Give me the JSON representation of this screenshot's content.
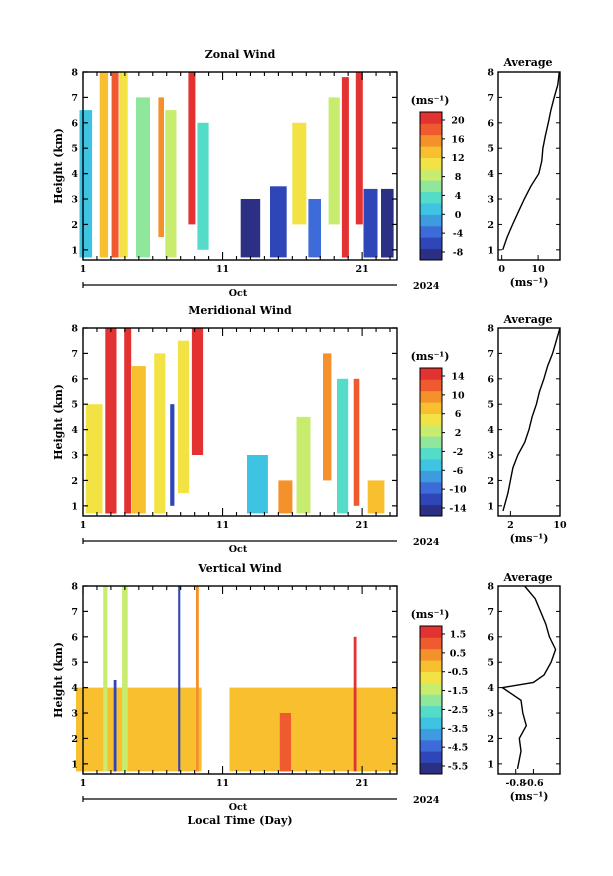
{
  "time_axis": {
    "ticks": [
      "1",
      "11",
      "21"
    ],
    "month": "Oct",
    "year": "2024",
    "xlabel": "Local Time (Day)"
  },
  "height_axis": {
    "label": "Height (km)",
    "ticks": [
      "1",
      "2",
      "3",
      "4",
      "5",
      "6",
      "7",
      "8"
    ]
  },
  "unit_label": "(ms⁻¹)",
  "average_title": "Average",
  "chart_data": [
    {
      "type": "heatmap",
      "title": "Zonal Wind",
      "ylabel": "Height (km)",
      "ylim": [
        0.6,
        8
      ],
      "xlim": [
        1,
        23.5
      ],
      "colorbar": {
        "ticks": [
          "20",
          "16",
          "12",
          "8",
          "4",
          "0",
          "-4",
          "-8"
        ],
        "range": [
          -10,
          22
        ]
      },
      "colormap": [
        "#2c3085",
        "#2f46b8",
        "#3d6cd8",
        "#3f9be0",
        "#3ec4e2",
        "#54dcc8",
        "#8ee79a",
        "#c8ec6e",
        "#f3e244",
        "#f8bf2e",
        "#f5912b",
        "#ef5a2e",
        "#e23232"
      ],
      "fields": [
        {
          "day": 1.2,
          "w": 0.9,
          "from": 0.7,
          "to": 6.5,
          "v": 0
        },
        {
          "day": 2.5,
          "w": 0.6,
          "from": 0.7,
          "to": 8,
          "v": 14
        },
        {
          "day": 3.3,
          "w": 0.5,
          "from": 0.7,
          "to": 8,
          "v": 18
        },
        {
          "day": 3.9,
          "w": 0.6,
          "from": 0.7,
          "to": 8,
          "v": 12
        },
        {
          "day": 5.3,
          "w": 1.0,
          "from": 0.7,
          "to": 7,
          "v": 6
        },
        {
          "day": 6.6,
          "w": 0.4,
          "from": 1.5,
          "to": 7,
          "v": 16
        },
        {
          "day": 7.3,
          "w": 0.8,
          "from": 0.7,
          "to": 6.5,
          "v": 8
        },
        {
          "day": 8.8,
          "w": 0.5,
          "from": 2,
          "to": 8,
          "v": 20
        },
        {
          "day": 9.6,
          "w": 0.8,
          "from": 1,
          "to": 6,
          "v": 4
        },
        {
          "day": 13,
          "w": 1.4,
          "from": 0.7,
          "to": 3,
          "v": -8
        },
        {
          "day": 15,
          "w": 1.2,
          "from": 0.7,
          "to": 3.5,
          "v": -6
        },
        {
          "day": 16.5,
          "w": 1.0,
          "from": 2,
          "to": 6,
          "v": 10
        },
        {
          "day": 17.6,
          "w": 0.9,
          "from": 0.7,
          "to": 3,
          "v": -4
        },
        {
          "day": 19,
          "w": 0.8,
          "from": 2,
          "to": 7,
          "v": 8
        },
        {
          "day": 19.8,
          "w": 0.5,
          "from": 0.7,
          "to": 7.8,
          "v": 20
        },
        {
          "day": 20.8,
          "w": 0.5,
          "from": 2,
          "to": 8,
          "v": 22
        },
        {
          "day": 21.6,
          "w": 1.0,
          "from": 0.7,
          "to": 3.4,
          "v": -6
        },
        {
          "day": 22.8,
          "w": 0.9,
          "from": 0.7,
          "to": 3.4,
          "v": -8
        }
      ],
      "average": {
        "xlim": [
          -1,
          16
        ],
        "xticks": [
          0,
          10
        ],
        "xlabel": "(ms⁻¹)",
        "profile": [
          [
            1,
            0.3
          ],
          [
            1.5,
            1.5
          ],
          [
            2,
            3
          ],
          [
            2.5,
            4.6
          ],
          [
            3,
            6.2
          ],
          [
            3.5,
            8
          ],
          [
            4,
            10.2
          ],
          [
            4.5,
            11
          ],
          [
            5,
            11.3
          ],
          [
            5.5,
            12
          ],
          [
            6,
            12.8
          ],
          [
            6.5,
            13.5
          ],
          [
            7,
            14.4
          ],
          [
            7.5,
            15.4
          ],
          [
            8,
            15.8
          ]
        ]
      }
    },
    {
      "type": "heatmap",
      "title": "Meridional Wind",
      "ylabel": "Height (km)",
      "ylim": [
        0.6,
        8
      ],
      "xlim": [
        1,
        23.5
      ],
      "colorbar": {
        "ticks": [
          "14",
          "10",
          "6",
          "2",
          "-2",
          "-6",
          "-10",
          "-14"
        ],
        "range": [
          -16,
          16
        ]
      },
      "colormap": [
        "#2c3085",
        "#2f46b8",
        "#3d6cd8",
        "#3f9be0",
        "#3ec4e2",
        "#54dcc8",
        "#8ee79a",
        "#c8ec6e",
        "#f3e244",
        "#f8bf2e",
        "#f5912b",
        "#ef5a2e",
        "#e23232"
      ],
      "fields": [
        {
          "day": 1.8,
          "w": 1.2,
          "from": 0.7,
          "to": 5,
          "v": 4
        },
        {
          "day": 3.0,
          "w": 0.8,
          "from": 0.7,
          "to": 8,
          "v": 16
        },
        {
          "day": 4.2,
          "w": 0.5,
          "from": 0.7,
          "to": 8,
          "v": 14
        },
        {
          "day": 5.0,
          "w": 1.0,
          "from": 0.7,
          "to": 6.5,
          "v": 8
        },
        {
          "day": 6.5,
          "w": 0.8,
          "from": 0.7,
          "to": 7,
          "v": 6
        },
        {
          "day": 7.4,
          "w": 0.3,
          "from": 1,
          "to": 5,
          "v": -12
        },
        {
          "day": 8.2,
          "w": 0.8,
          "from": 1.5,
          "to": 7.5,
          "v": 4
        },
        {
          "day": 9.2,
          "w": 0.8,
          "from": 3,
          "to": 8,
          "v": 16
        },
        {
          "day": 13.5,
          "w": 1.5,
          "from": 0.7,
          "to": 3,
          "v": -4
        },
        {
          "day": 15.5,
          "w": 1.0,
          "from": 0.7,
          "to": 2,
          "v": 10
        },
        {
          "day": 16.8,
          "w": 1.0,
          "from": 0.7,
          "to": 4.5,
          "v": 2
        },
        {
          "day": 18.5,
          "w": 0.6,
          "from": 2,
          "to": 7,
          "v": 10
        },
        {
          "day": 19.6,
          "w": 0.8,
          "from": 0.7,
          "to": 6,
          "v": -2
        },
        {
          "day": 20.6,
          "w": 0.4,
          "from": 1,
          "to": 6,
          "v": 12
        },
        {
          "day": 22,
          "w": 1.2,
          "from": 0.7,
          "to": 2,
          "v": 8
        }
      ],
      "average": {
        "xlim": [
          0,
          10
        ],
        "xticks": [
          2,
          10
        ],
        "xlabel": "(ms⁻¹)",
        "profile": [
          [
            0.8,
            0.8
          ],
          [
            1.5,
            1.6
          ],
          [
            2,
            2
          ],
          [
            2.5,
            2.4
          ],
          [
            3,
            3.2
          ],
          [
            3.5,
            4.3
          ],
          [
            4,
            5
          ],
          [
            4.5,
            5.5
          ],
          [
            5,
            6.2
          ],
          [
            5.5,
            6.7
          ],
          [
            6,
            7.4
          ],
          [
            6.5,
            8
          ],
          [
            7,
            8.8
          ],
          [
            7.5,
            9.4
          ],
          [
            8,
            10
          ]
        ]
      }
    },
    {
      "type": "heatmap",
      "title": "Vertical Wind",
      "ylabel": "Height (km)",
      "ylim": [
        0.6,
        8
      ],
      "xlim": [
        1,
        23.5
      ],
      "colorbar": {
        "ticks": [
          "1.5",
          "0.5",
          "-0.5",
          "-1.5",
          "-2.5",
          "-3.5",
          "-4.5",
          "-5.5"
        ],
        "range": [
          -6.2,
          2
        ]
      },
      "colormap": [
        "#2c3085",
        "#2f46b8",
        "#3d6cd8",
        "#3f9be0",
        "#3ec4e2",
        "#54dcc8",
        "#8ee79a",
        "#c8ec6e",
        "#f3e244",
        "#f8bf2e",
        "#f5912b",
        "#ef5a2e",
        "#e23232"
      ],
      "fields": [
        {
          "day": 5,
          "w": 9,
          "from": 0.7,
          "to": 4,
          "v": -0.2
        },
        {
          "day": 17.5,
          "w": 12,
          "from": 0.7,
          "to": 4,
          "v": -0.2
        },
        {
          "day": 2.6,
          "w": 0.3,
          "from": 0.7,
          "to": 8,
          "v": -1.5
        },
        {
          "day": 3.3,
          "w": 0.2,
          "from": 0.7,
          "to": 4.3,
          "v": -5.0
        },
        {
          "day": 4,
          "w": 0.4,
          "from": 0.7,
          "to": 8,
          "v": -1.2
        },
        {
          "day": 7.9,
          "w": 0.15,
          "from": 0.7,
          "to": 8,
          "v": -5.5
        },
        {
          "day": 9.2,
          "w": 0.2,
          "from": 0.7,
          "to": 8,
          "v": 0.5
        },
        {
          "day": 15.5,
          "w": 0.8,
          "from": 0.7,
          "to": 3,
          "v": 0.8
        },
        {
          "day": 20.5,
          "w": 0.2,
          "from": 0.7,
          "to": 6,
          "v": 1.5
        }
      ],
      "average": {
        "xlim": [
          -1.0,
          -0.3
        ],
        "xticks": [
          -0.8,
          -0.6
        ],
        "xlabel": "(ms⁻¹)",
        "profile": [
          [
            0.8,
            -0.78
          ],
          [
            1.5,
            -0.74
          ],
          [
            2,
            -0.76
          ],
          [
            2.5,
            -0.68
          ],
          [
            3,
            -0.72
          ],
          [
            3.5,
            -0.74
          ],
          [
            4,
            -0.95
          ],
          [
            4.2,
            -0.6
          ],
          [
            4.5,
            -0.48
          ],
          [
            5,
            -0.4
          ],
          [
            5.5,
            -0.35
          ],
          [
            6,
            -0.42
          ],
          [
            6.5,
            -0.46
          ],
          [
            7,
            -0.52
          ],
          [
            7.5,
            -0.58
          ],
          [
            8,
            -0.7
          ]
        ]
      }
    }
  ]
}
